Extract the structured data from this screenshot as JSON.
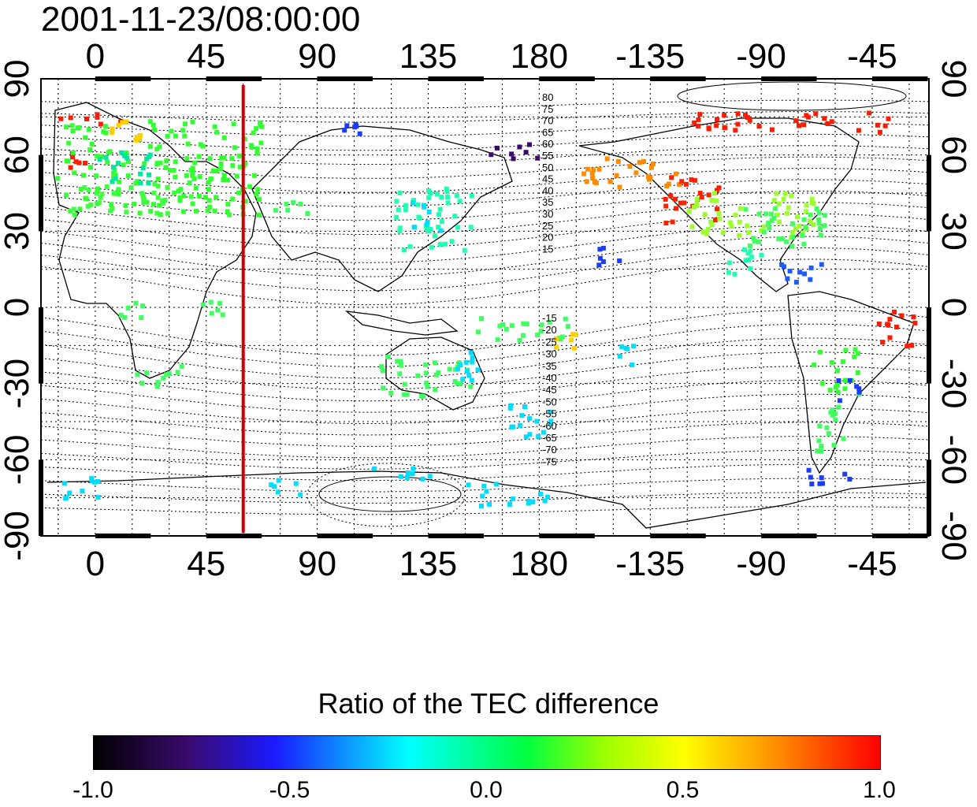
{
  "title": "2001-11-23/08:00:00",
  "map": {
    "lon_ticks": [
      "0",
      "45",
      "90",
      "135",
      "180",
      "-135",
      "-90",
      "-45"
    ],
    "lat_ticks": [
      "90",
      "60",
      "30",
      "0",
      "-30",
      "-60",
      "-90"
    ],
    "contour_labels_north": [
      "80",
      "75",
      "70",
      "65",
      "60",
      "55",
      "50",
      "45",
      "40",
      "35",
      "30",
      "25",
      "20",
      "15"
    ],
    "contour_labels_south": [
      "-15",
      "-20",
      "-25",
      "-30",
      "-35",
      "-40",
      "-45",
      "-50",
      "-55",
      "-60",
      "-65",
      "-70",
      "-75"
    ],
    "meridian_marker_lon": 60,
    "marker_color": "#cc0000"
  },
  "colorbar": {
    "title": "Ratio of the TEC difference",
    "ticks": [
      "-1.0",
      "-0.5",
      "0.0",
      "0.5",
      "1.0"
    ],
    "min": -1.0,
    "max": 1.0
  }
}
